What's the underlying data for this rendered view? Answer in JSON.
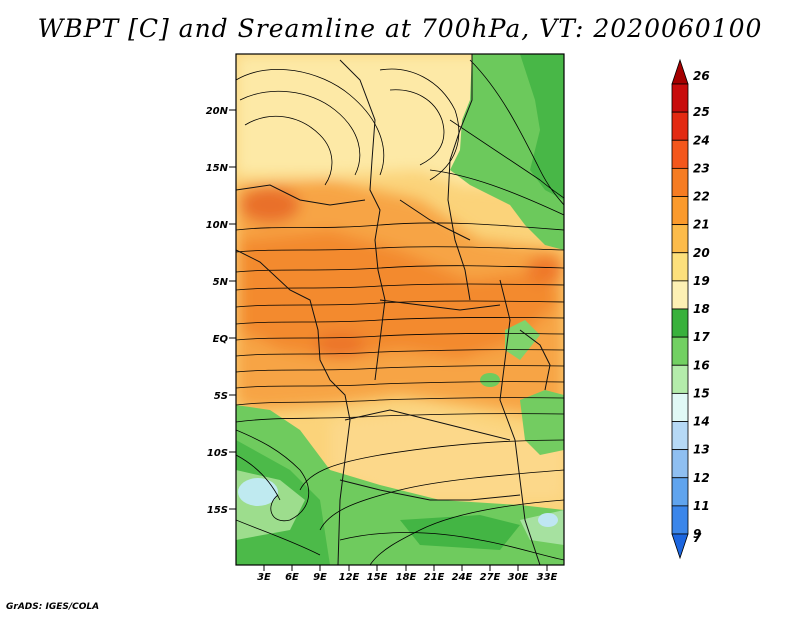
{
  "title": "WBPT [C] and Sreamline at 700hPa, VT: 2020060100",
  "footer": "GrADS: IGES/COLA",
  "map": {
    "lat_labels": [
      "20N",
      "15N",
      "10N",
      "5N",
      "EQ",
      "5S",
      "10S",
      "15S"
    ],
    "lon_labels": [
      "3E",
      "6E",
      "9E",
      "12E",
      "15E",
      "18E",
      "21E",
      "24E",
      "27E",
      "30E",
      "33E"
    ]
  },
  "colorbar": {
    "labels": [
      "26",
      "25",
      "24",
      "23",
      "22",
      "21",
      "20",
      "19",
      "18",
      "17",
      "16",
      "15",
      "14",
      "13",
      "12",
      "11",
      "9",
      "7"
    ],
    "colors": [
      "#a50000",
      "#c80c0c",
      "#e32a12",
      "#f3571c",
      "#f67c22",
      "#fb9a2c",
      "#fcbb4a",
      "#fde07c",
      "#fdf0b4",
      "#39b13c",
      "#72d062",
      "#b4ecab",
      "#e1f9f6",
      "#b6d9f6",
      "#8fbff1",
      "#60a4ee",
      "#3b86ea",
      "#1c66e0"
    ]
  }
}
